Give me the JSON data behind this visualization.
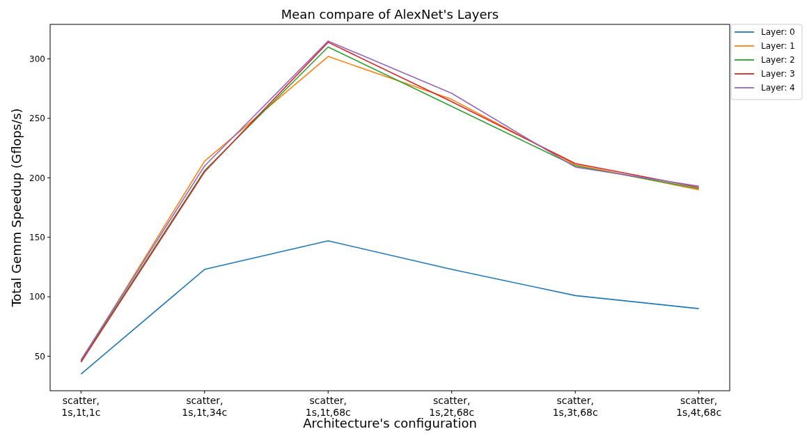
{
  "chart_data": {
    "type": "line",
    "title": "Mean compare of AlexNet's Layers",
    "xlabel": "Architecture's configuration",
    "ylabel": "Total Gemm Speedup (Gflops/s)",
    "categories": [
      "scatter,\n1s,1t,1c",
      "scatter,\n1s,1t,34c",
      "scatter,\n1s,1t,68c",
      "scatter,\n1s,2t,68c",
      "scatter,\n1s,3t,68c",
      "scatter,\n1s,4t,68c"
    ],
    "series": [
      {
        "name": "Layer: 0",
        "color": "#1f77b4",
        "values": [
          35,
          123,
          147,
          123,
          101,
          90
        ]
      },
      {
        "name": "Layer: 1",
        "color": "#ff7f0e",
        "values": [
          46,
          214,
          302,
          266,
          211,
          190
        ]
      },
      {
        "name": "Layer: 2",
        "color": "#2ca02c",
        "values": [
          46,
          206,
          310,
          260,
          210,
          191
        ]
      },
      {
        "name": "Layer: 3",
        "color": "#d62728",
        "values": [
          45,
          205,
          314,
          264,
          212,
          192
        ]
      },
      {
        "name": "Layer: 4",
        "color": "#9467bd",
        "values": [
          47,
          210,
          315,
          271,
          209,
          193
        ]
      }
    ],
    "ylim": [
      21,
      329
    ],
    "yticks": [
      50,
      100,
      150,
      200,
      250,
      300
    ],
    "grid": false,
    "legend": "top right"
  }
}
